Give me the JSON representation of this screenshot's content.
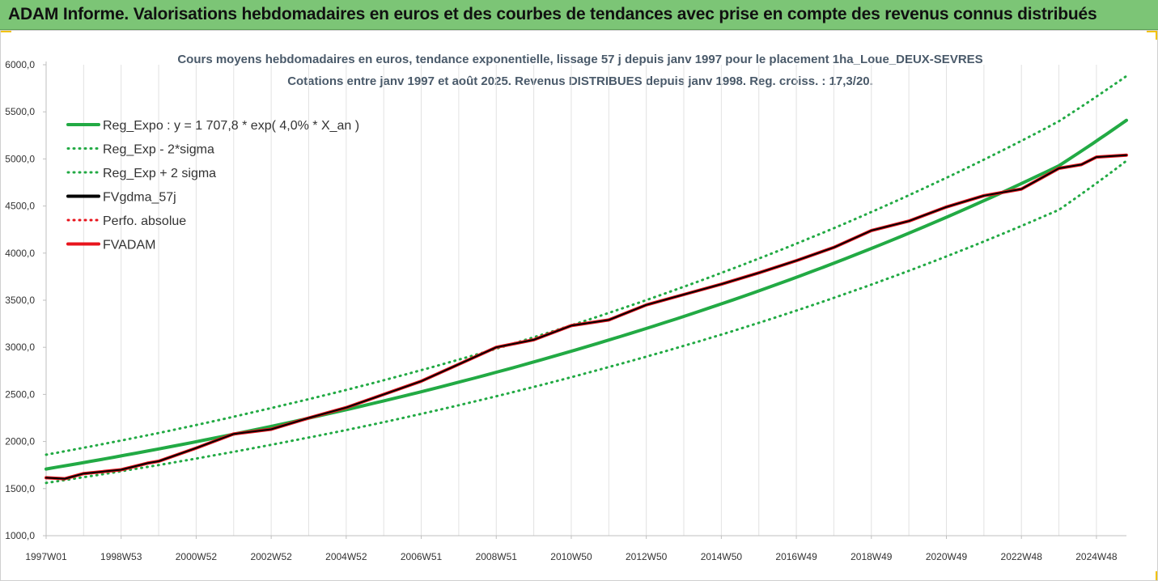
{
  "banner": {
    "title": "ADAM Informe. Valorisations hebdomadaires en euros et des courbes de tendances avec prise en compte des revenus connus distribués"
  },
  "colors": {
    "banner_bg": "#7cc576",
    "reg_green": "#22aa44",
    "series_red": "#e8141c",
    "series_black": "#000000",
    "accent_corner": "#f2c200"
  },
  "chart_data": {
    "type": "line",
    "title": "Cours moyens hebdomadaires en euros, tendance exponentielle, lissage 57 j depuis janv 1997 pour le placement 1ha_Loue_DEUX-SEVRES",
    "subtitle": "Cotations entre janv 1997 et août 2025. Revenus DISTRIBUES depuis janv 1998. Reg. croiss. : 17,3/20.",
    "x_tick_labels": [
      "1997W01",
      "1998W53",
      "2000W52",
      "2002W52",
      "2004W52",
      "2006W51",
      "2008W51",
      "2010W50",
      "2012W50",
      "2014W50",
      "2016W49",
      "2018W49",
      "2020W49",
      "2022W48",
      "2024W48"
    ],
    "x_tick_years": [
      1997.0,
      1999.0,
      2001.0,
      2003.0,
      2005.0,
      2007.0,
      2009.0,
      2011.0,
      2013.0,
      2015.0,
      2017.0,
      2019.0,
      2021.0,
      2023.0,
      2025.0
    ],
    "xlim": [
      1997.0,
      2025.8
    ],
    "y_tick_labels": [
      "1000,0",
      "1500,0",
      "2000,0",
      "2500,0",
      "3000,0",
      "3500,0",
      "4000,0",
      "4500,0",
      "5000,0",
      "5500,0",
      "6000,0"
    ],
    "ylim": [
      1000,
      6000
    ],
    "grid": "vertical",
    "legend_position": "top-left",
    "legend": [
      {
        "label": "Reg_Expo : y = 1 707,8 * exp( 4,0% *  X_an )",
        "color": "#22aa44",
        "style": "solid"
      },
      {
        "label": "Reg_Exp - 2*sigma",
        "color": "#22aa44",
        "style": "dotted"
      },
      {
        "label": "Reg_Exp + 2 sigma",
        "color": "#22aa44",
        "style": "dotted"
      },
      {
        "label": "FVgdma_57j",
        "color": "#000000",
        "style": "solid"
      },
      {
        "label": "Perfo. absolue",
        "color": "#e8141c",
        "style": "dotted"
      },
      {
        "label": "FVADAM",
        "color": "#e8141c",
        "style": "solid"
      }
    ],
    "series": [
      {
        "name": "Reg_Expo : y = 1 707,8 * exp( 4,0% *  X_an )",
        "x": [
          1997.0,
          2000.0,
          2003.0,
          2006.0,
          2009.0,
          2012.0,
          2015.0,
          2018.0,
          2021.0,
          2024.0,
          2025.8
        ],
        "values": [
          1708,
          1921,
          2161,
          2431,
          2735,
          3077,
          3461,
          3893,
          4381,
          4928,
          5410
        ]
      },
      {
        "name": "Reg_Exp - 2*sigma",
        "x": [
          1997.0,
          2000.0,
          2003.0,
          2006.0,
          2009.0,
          2012.0,
          2015.0,
          2018.0,
          2021.0,
          2024.0,
          2025.8
        ],
        "values": [
          1560,
          1750,
          1965,
          2205,
          2480,
          2790,
          3135,
          3525,
          3965,
          4460,
          4980
        ]
      },
      {
        "name": "Reg_Exp + 2 sigma",
        "x": [
          1997.0,
          2000.0,
          2003.0,
          2006.0,
          2009.0,
          2012.0,
          2015.0,
          2018.0,
          2021.0,
          2024.0,
          2025.8
        ],
        "values": [
          1860,
          2090,
          2355,
          2650,
          2985,
          3365,
          3790,
          4265,
          4800,
          5400,
          5880
        ]
      },
      {
        "name": "FVADAM",
        "x": [
          1997.0,
          1997.5,
          1998.0,
          1999.0,
          1999.7,
          2000.0,
          2001.0,
          2002.0,
          2003.0,
          2004.0,
          2005.0,
          2006.0,
          2007.0,
          2008.0,
          2009.0,
          2010.0,
          2011.0,
          2012.0,
          2013.0,
          2014.0,
          2015.0,
          2016.0,
          2017.0,
          2018.0,
          2019.0,
          2020.0,
          2021.0,
          2022.0,
          2023.0,
          2024.0,
          2024.6,
          2025.0,
          2025.8
        ],
        "values": [
          1615,
          1605,
          1660,
          1700,
          1770,
          1790,
          1930,
          2080,
          2130,
          2250,
          2360,
          2500,
          2640,
          2820,
          3000,
          3080,
          3230,
          3290,
          3450,
          3560,
          3670,
          3790,
          3920,
          4060,
          4240,
          4340,
          4490,
          4610,
          4680,
          4900,
          4940,
          5020,
          5040
        ]
      },
      {
        "name": "FVgdma_57j",
        "x": [
          1997.0,
          1997.5,
          1998.0,
          1999.0,
          1999.7,
          2000.0,
          2001.0,
          2002.0,
          2003.0,
          2004.0,
          2005.0,
          2006.0,
          2007.0,
          2008.0,
          2009.0,
          2010.0,
          2011.0,
          2012.0,
          2013.0,
          2014.0,
          2015.0,
          2016.0,
          2017.0,
          2018.0,
          2019.0,
          2020.0,
          2021.0,
          2022.0,
          2023.0,
          2024.0,
          2024.6,
          2025.0,
          2025.8
        ],
        "values": [
          1615,
          1605,
          1660,
          1700,
          1770,
          1790,
          1930,
          2080,
          2130,
          2250,
          2360,
          2500,
          2640,
          2820,
          3000,
          3080,
          3230,
          3290,
          3450,
          3560,
          3670,
          3790,
          3920,
          4060,
          4240,
          4340,
          4490,
          4610,
          4680,
          4900,
          4940,
          5020,
          5040
        ]
      }
    ]
  }
}
